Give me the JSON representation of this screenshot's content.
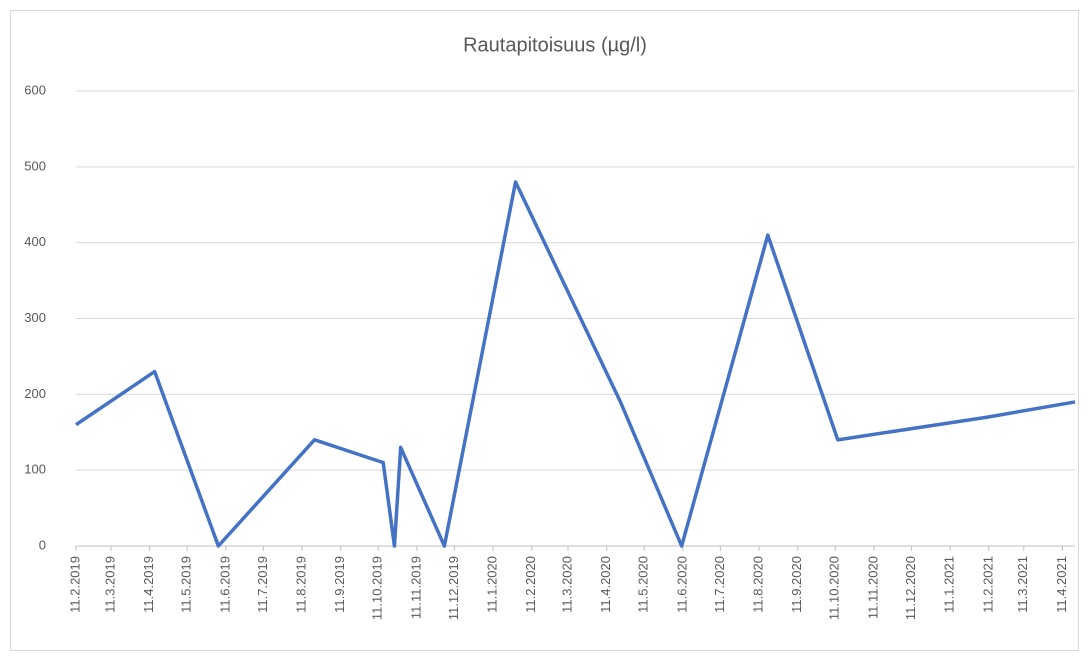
{
  "chart_data": {
    "type": "line",
    "title": "Rautapitoisuus (µg/l)",
    "x": [
      "11.2.2019",
      "15.4.2019",
      "5.6.2019",
      "21.8.2019",
      "15.10.2019",
      "24.10.2019",
      "29.10.2019",
      "3.12.2019",
      "29.1.2020",
      "22.4.2020",
      "10.6.2020",
      "18.8.2020",
      "13.10.2020",
      "10.2.2021",
      "21.4.2021"
    ],
    "series": [
      {
        "name": "Rautapitoisuus",
        "color": "#4472c4",
        "values": [
          160,
          230,
          0,
          140,
          110,
          0,
          130,
          0,
          480,
          190,
          0,
          410,
          140,
          170,
          190
        ]
      }
    ],
    "xlim": [
      "11.2.2019",
      "21.4.2021"
    ],
    "xticks": [
      "11.2.2019",
      "11.3.2019",
      "11.4.2019",
      "11.5.2019",
      "11.6.2019",
      "11.7.2019",
      "11.8.2019",
      "11.9.2019",
      "11.10.2019",
      "11.11.2019",
      "11.12.2019",
      "11.1.2020",
      "11.2.2020",
      "11.3.2020",
      "11.4.2020",
      "11.5.2020",
      "11.6.2020",
      "11.7.2020",
      "11.8.2020",
      "11.9.2020",
      "11.10.2020",
      "11.11.2020",
      "11.12.2020",
      "11.1.2021",
      "11.2.2021",
      "11.3.2021",
      "11.4.2021"
    ],
    "ylim": [
      0,
      600
    ],
    "yticks": [
      0,
      100,
      200,
      300,
      400,
      500,
      600
    ],
    "grid": true
  }
}
